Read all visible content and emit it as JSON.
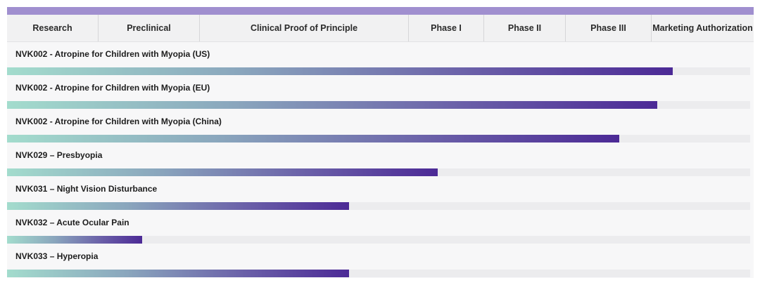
{
  "chart_data": {
    "type": "bar",
    "orientation": "horizontal",
    "title": "",
    "phases": [
      "Research",
      "Preclinical",
      "Clinical Proof of Principle",
      "Phase I",
      "Phase II",
      "Phase III",
      "Marketing Authorization"
    ],
    "programs": [
      {
        "name": "NVK002 - Atropine for Children with Myopia (US)",
        "progress": 0.896
      },
      {
        "name": "NVK002 - Atropine for Children with Myopia (EU)",
        "progress": 0.875
      },
      {
        "name": "NVK002 - Atropine for Children with Myopia (China)",
        "progress": 0.824
      },
      {
        "name": "NVK029 – Presbyopia",
        "progress": 0.58
      },
      {
        "name": "NVK031 – Night Vision Disturbance",
        "progress": 0.46
      },
      {
        "name": "NVK032 – Acute Ocular Pain",
        "progress": 0.182
      },
      {
        "name": "NVK033 – Hyperopia",
        "progress": 0.46
      }
    ],
    "colors": {
      "header_bar": "#a08fcf",
      "gradient_start": "#a3dccd",
      "gradient_end": "#4c2a96",
      "track": "#ececee"
    }
  }
}
